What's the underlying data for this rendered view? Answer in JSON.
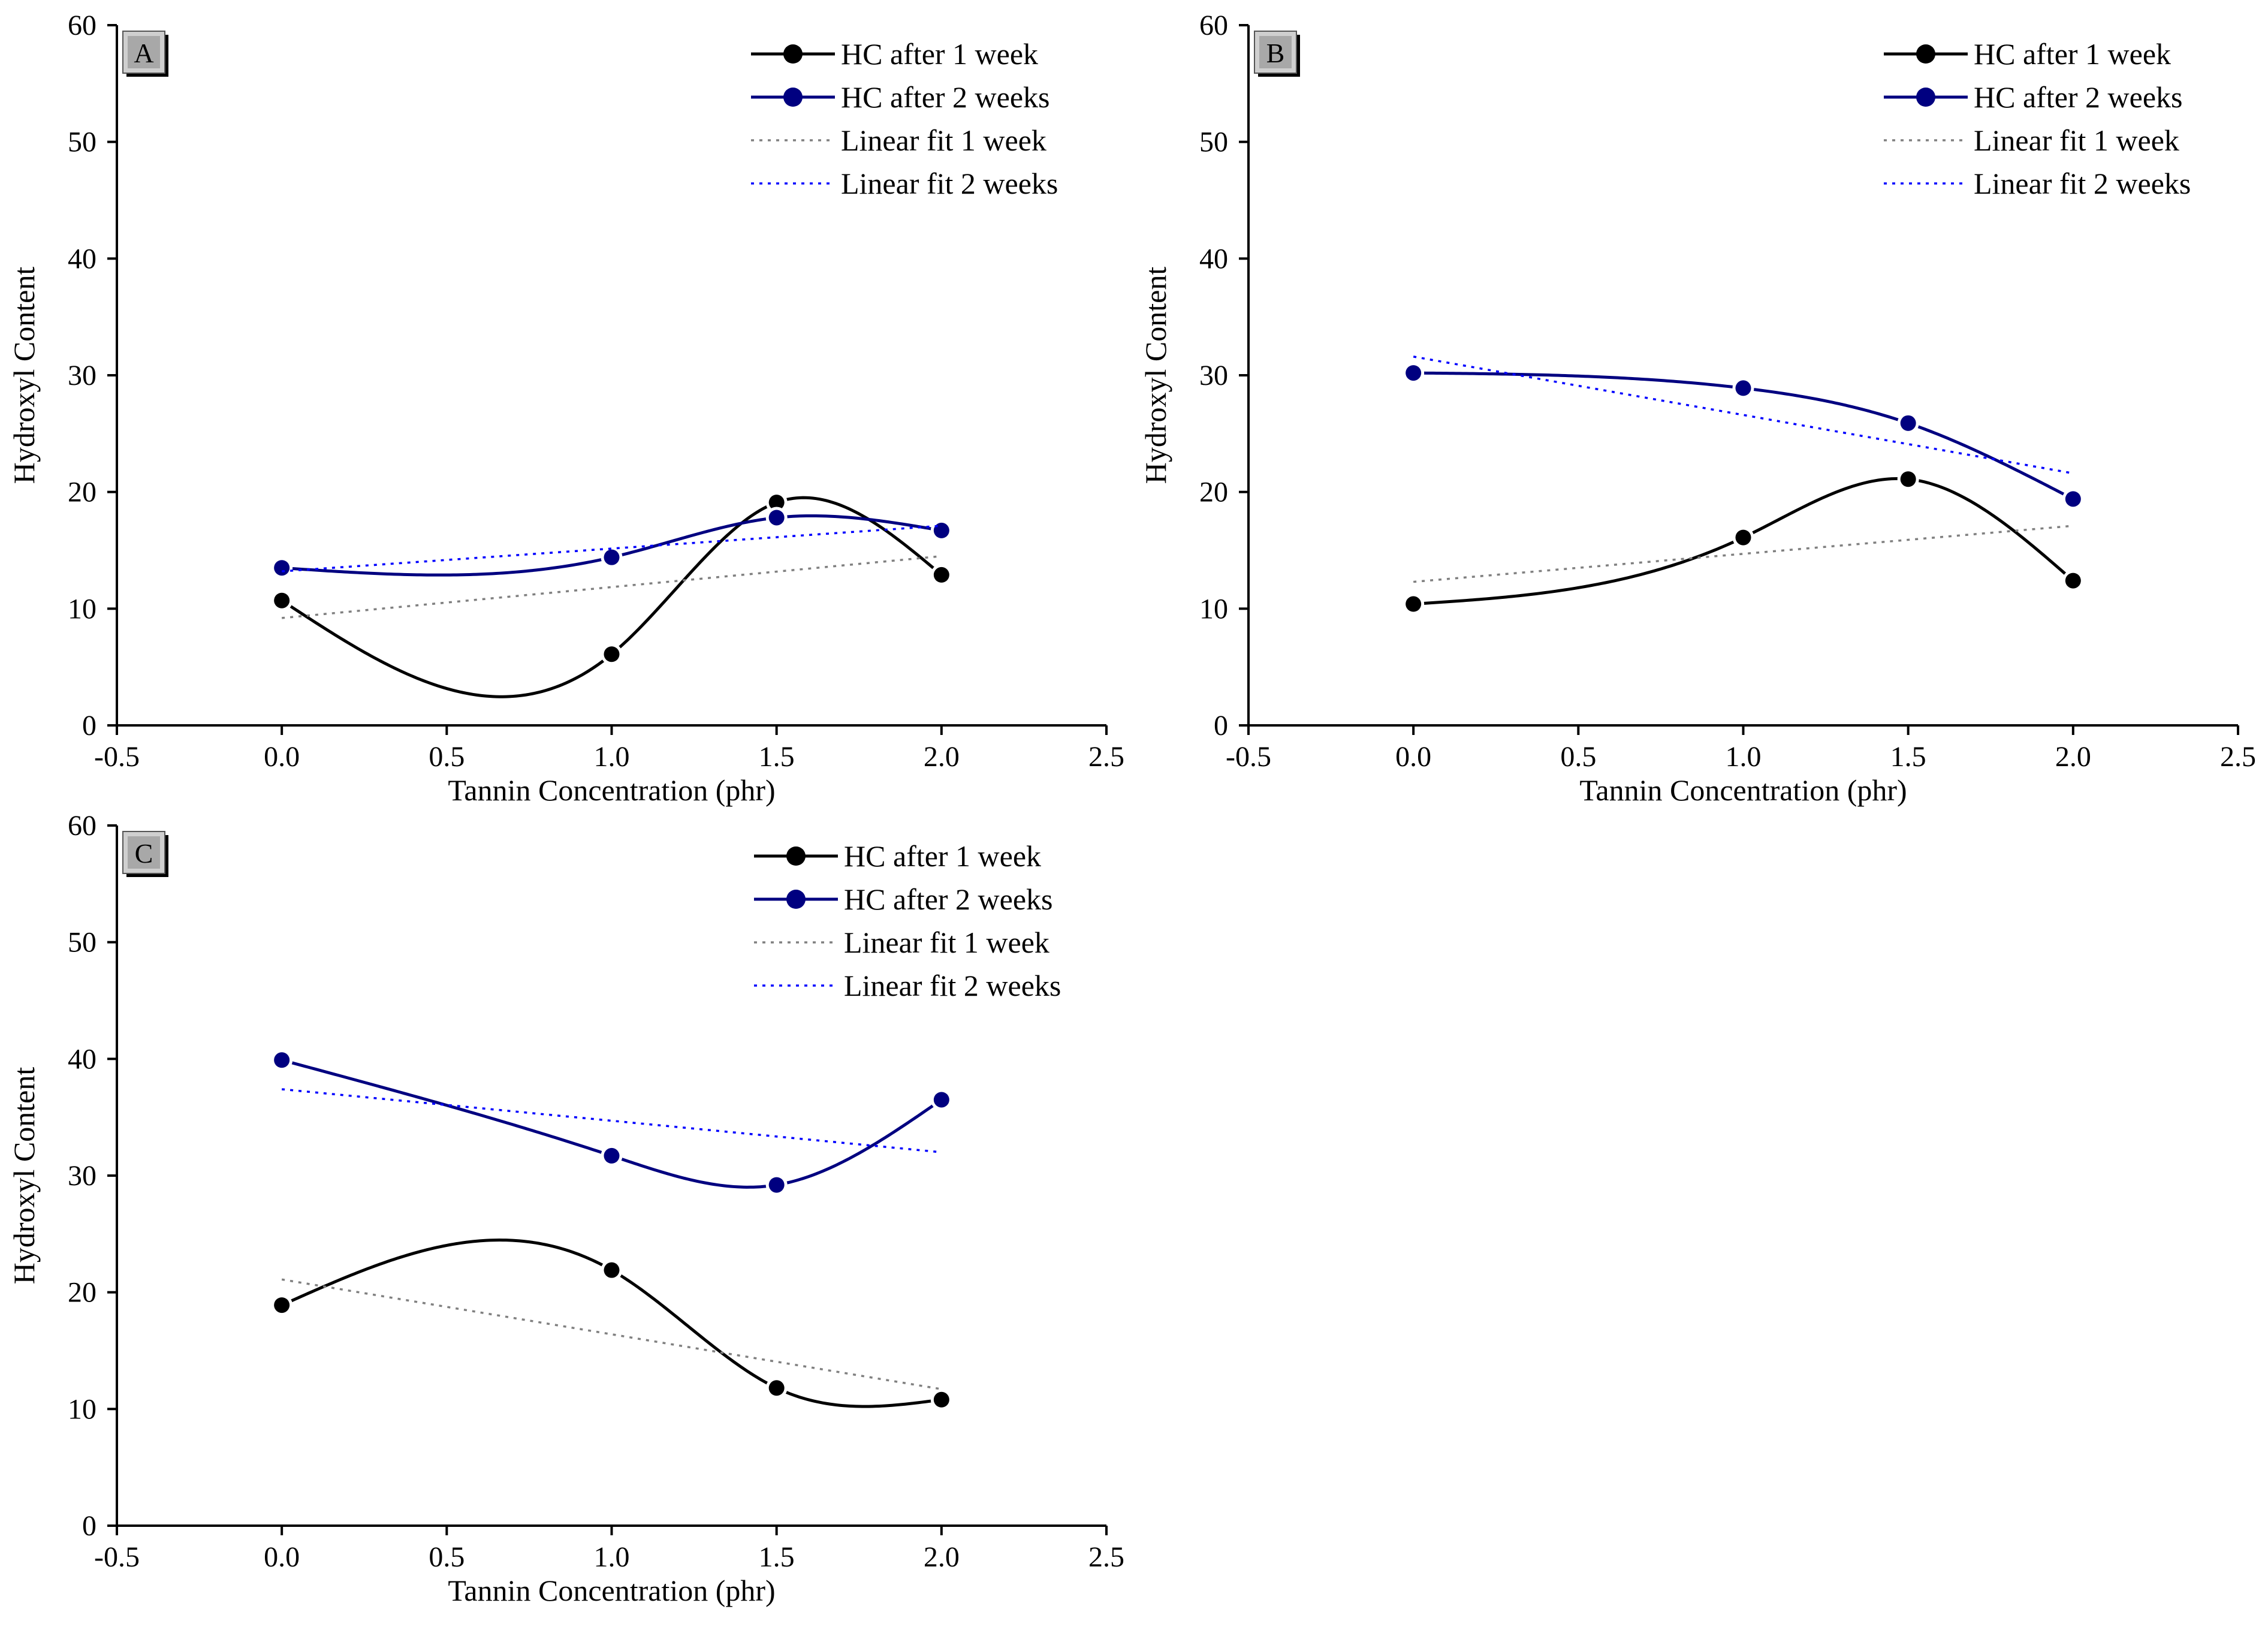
{
  "colors": {
    "hc1": "#000000",
    "hc2": "#000080",
    "fit1": "#808080",
    "fit2": "#0000ff",
    "axis": "#000000"
  },
  "chart_data": [
    {
      "type": "line",
      "panel_label": "A",
      "xlabel": "Tannin Concentration (phr)",
      "ylabel": "Hydroxyl Content",
      "xlim": [
        -0.5,
        2.5
      ],
      "ylim": [
        0,
        60
      ],
      "xticks": [
        "-0.5",
        "0.0",
        "0.5",
        "1.0",
        "1.5",
        "2.0",
        "2.5"
      ],
      "yticks": [
        "0",
        "10",
        "20",
        "30",
        "40",
        "50",
        "60"
      ],
      "x": [
        0.0,
        1.0,
        1.5,
        2.0
      ],
      "series": [
        {
          "name": "HC after 1 week",
          "kind": "spline",
          "values": [
            10.7,
            6.1,
            19.1,
            12.9
          ]
        },
        {
          "name": "HC after 2 weeks",
          "kind": "spline",
          "values": [
            13.5,
            14.4,
            17.8,
            16.7
          ]
        },
        {
          "name": "Linear fit 1 week",
          "kind": "fit",
          "endpoints": [
            9.2,
            14.5
          ]
        },
        {
          "name": "Linear fit 2 weeks",
          "kind": "fit",
          "endpoints": [
            13.2,
            17.1
          ]
        }
      ]
    },
    {
      "type": "line",
      "panel_label": "B",
      "xlabel": "Tannin Concentration (phr)",
      "ylabel": "Hydroxyl Content",
      "xlim": [
        -0.5,
        2.5
      ],
      "ylim": [
        0,
        60
      ],
      "xticks": [
        "-0.5",
        "0.0",
        "0.5",
        "1.0",
        "1.5",
        "2.0",
        "2.5"
      ],
      "yticks": [
        "0",
        "10",
        "20",
        "30",
        "40",
        "50",
        "60"
      ],
      "x": [
        0.0,
        1.0,
        1.5,
        2.0
      ],
      "series": [
        {
          "name": "HC after 1 week",
          "kind": "spline",
          "values": [
            10.4,
            16.1,
            21.1,
            12.4
          ]
        },
        {
          "name": "HC after 2 weeks",
          "kind": "spline",
          "values": [
            30.2,
            28.9,
            25.9,
            19.4
          ]
        },
        {
          "name": "Linear fit 1 week",
          "kind": "fit",
          "endpoints": [
            12.3,
            17.1
          ]
        },
        {
          "name": "Linear fit 2 weeks",
          "kind": "fit",
          "endpoints": [
            31.6,
            21.6
          ]
        }
      ]
    },
    {
      "type": "line",
      "panel_label": "C",
      "xlabel": "Tannin Concentration (phr)",
      "ylabel": "Hydroxyl Content",
      "xlim": [
        -0.5,
        2.5
      ],
      "ylim": [
        0,
        60
      ],
      "xticks": [
        "-0.5",
        "0.0",
        "0.5",
        "1.0",
        "1.5",
        "2.0",
        "2.5"
      ],
      "yticks": [
        "0",
        "10",
        "20",
        "30",
        "40",
        "50",
        "60"
      ],
      "x": [
        0.0,
        1.0,
        1.5,
        2.0
      ],
      "series": [
        {
          "name": "HC after 1 week",
          "kind": "spline",
          "values": [
            18.9,
            21.9,
            11.8,
            10.8
          ]
        },
        {
          "name": "HC after 2 weeks",
          "kind": "spline",
          "values": [
            39.9,
            31.7,
            29.2,
            36.5
          ]
        },
        {
          "name": "Linear fit 1 week",
          "kind": "fit",
          "endpoints": [
            21.1,
            11.7
          ]
        },
        {
          "name": "Linear fit 2 weeks",
          "kind": "fit",
          "endpoints": [
            37.4,
            32.0
          ]
        }
      ]
    }
  ]
}
